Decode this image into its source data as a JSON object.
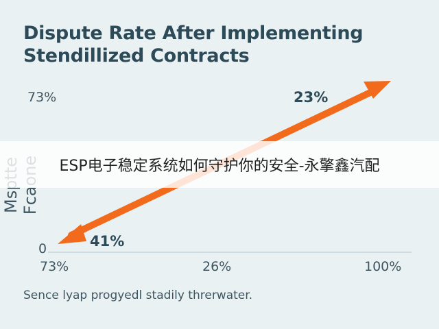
{
  "chart_data": {
    "type": "line",
    "title_line1": "Dispute Rate After Implementing",
    "title_line2": "Stendillized Contracts",
    "ylabel": "Msptte Fcaone",
    "y_ticks": [
      "73%",
      "0"
    ],
    "x_ticks": [
      "73%",
      "26%",
      "100%"
    ],
    "series": [
      {
        "points": [
          {
            "label": "41%"
          },
          {
            "label": "23%"
          }
        ],
        "color": "#f26b1d"
      }
    ],
    "caption": "Sence lyap progyedl stadily threrwater."
  },
  "watermark": {
    "text": "ESP电子稳定系统如何守护你的安全-永擎鑫汽配"
  }
}
